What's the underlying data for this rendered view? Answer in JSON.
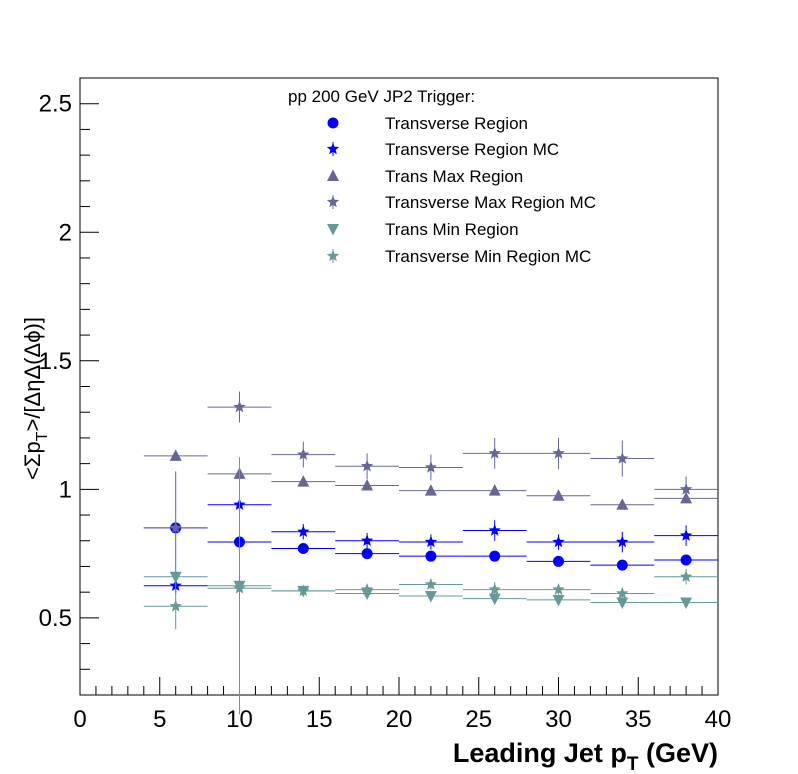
{
  "chart_data": {
    "type": "scatter",
    "xlim": [
      0,
      40
    ],
    "ylim": [
      0.2,
      2.6
    ],
    "xticks": [
      0,
      5,
      10,
      15,
      20,
      25,
      30,
      35,
      40
    ],
    "yticks": [
      0.5,
      1,
      1.5,
      2,
      2.5
    ],
    "xtick_labels": [
      "0",
      "5",
      "10",
      "15",
      "20",
      "25",
      "30",
      "35",
      "40"
    ],
    "ytick_labels": [
      "0.5",
      "1",
      "1.5",
      "2",
      "2.5"
    ],
    "xlabel_main": "Leading Jet p",
    "xlabel_sub": "T",
    "xlabel_tail": " (GeV)",
    "ylabel_part1": "<Σp",
    "ylabel_sub": "T",
    "ylabel_part2": ">/[ΔηΔ(Δϕ)]",
    "legend_title": "pp 200 GeV JP2 Trigger:",
    "legend_position": "top-right",
    "grid": false,
    "series": [
      {
        "name": "Transverse Region",
        "marker": "circle",
        "color": "#0000ff",
        "x": [
          6,
          10,
          14,
          18,
          22,
          26,
          30,
          34,
          38
        ],
        "xerr": [
          2,
          2,
          2,
          2,
          2,
          2,
          2,
          2,
          2
        ],
        "y": [
          0.85,
          0.795,
          0.77,
          0.75,
          0.74,
          0.74,
          0.72,
          0.705,
          0.725
        ],
        "yerr": [
          0.005,
          0.005,
          0.005,
          0.005,
          0.005,
          0.005,
          0.005,
          0.005,
          0.005
        ]
      },
      {
        "name": "Transverse Region MC",
        "marker": "star",
        "color": "#0000ff",
        "x": [
          6,
          10,
          14,
          18,
          22,
          26,
          30,
          34,
          38
        ],
        "xerr": [
          2,
          2,
          2,
          2,
          2,
          2,
          2,
          2,
          2
        ],
        "y": [
          0.625,
          0.94,
          0.835,
          0.8,
          0.795,
          0.84,
          0.795,
          0.795,
          0.82
        ],
        "yerr": [
          0.03,
          0.03,
          0.03,
          0.03,
          0.03,
          0.04,
          0.03,
          0.04,
          0.04
        ]
      },
      {
        "name": "Trans Max Region",
        "marker": "triangle-up",
        "color": "#666699",
        "x": [
          6,
          10,
          14,
          18,
          22,
          26,
          30,
          34,
          38
        ],
        "xerr": [
          2,
          2,
          2,
          2,
          2,
          2,
          2,
          2,
          2
        ],
        "y": [
          1.13,
          1.06,
          1.03,
          1.015,
          0.995,
          0.995,
          0.975,
          0.94,
          0.965
        ],
        "yerr": [
          0.005,
          0.005,
          0.005,
          0.005,
          0.005,
          0.005,
          0.005,
          0.005,
          0.005
        ]
      },
      {
        "name": "Transverse Max Region MC",
        "marker": "star",
        "color": "#666699",
        "x": [
          6,
          10,
          14,
          18,
          22,
          26,
          30,
          34,
          38
        ],
        "xerr": [
          2,
          2,
          2,
          2,
          2,
          2,
          2,
          2,
          2
        ],
        "y": [
          0.85,
          1.32,
          1.135,
          1.09,
          1.085,
          1.14,
          1.14,
          1.12,
          1.0
        ],
        "yerr": [
          0.22,
          0.06,
          0.05,
          0.05,
          0.05,
          0.06,
          0.06,
          0.07,
          0.05
        ]
      },
      {
        "name": "Trans Min Region",
        "marker": "triangle-down",
        "color": "#669999",
        "x": [
          6,
          10,
          14,
          18,
          22,
          26,
          30,
          34,
          38
        ],
        "xerr": [
          2,
          2,
          2,
          2,
          2,
          2,
          2,
          2,
          2
        ],
        "y": [
          0.66,
          0.625,
          0.605,
          0.595,
          0.585,
          0.575,
          0.57,
          0.56,
          0.56
        ],
        "yerr": [
          0.005,
          0.5,
          0.005,
          0.005,
          0.005,
          0.005,
          0.005,
          0.005,
          0.005
        ]
      },
      {
        "name": "Transverse Min Region MC",
        "marker": "star",
        "color": "#669999",
        "x": [
          6,
          10,
          14,
          18,
          22,
          26,
          30,
          34,
          38
        ],
        "xerr": [
          2,
          2,
          2,
          2,
          2,
          2,
          2,
          2,
          2
        ],
        "y": [
          0.545,
          0.615,
          0.605,
          0.61,
          0.63,
          0.61,
          0.61,
          0.595,
          0.66
        ],
        "yerr": [
          0.09,
          0.02,
          0.02,
          0.02,
          0.02,
          0.03,
          0.02,
          0.02,
          0.03
        ]
      }
    ]
  }
}
